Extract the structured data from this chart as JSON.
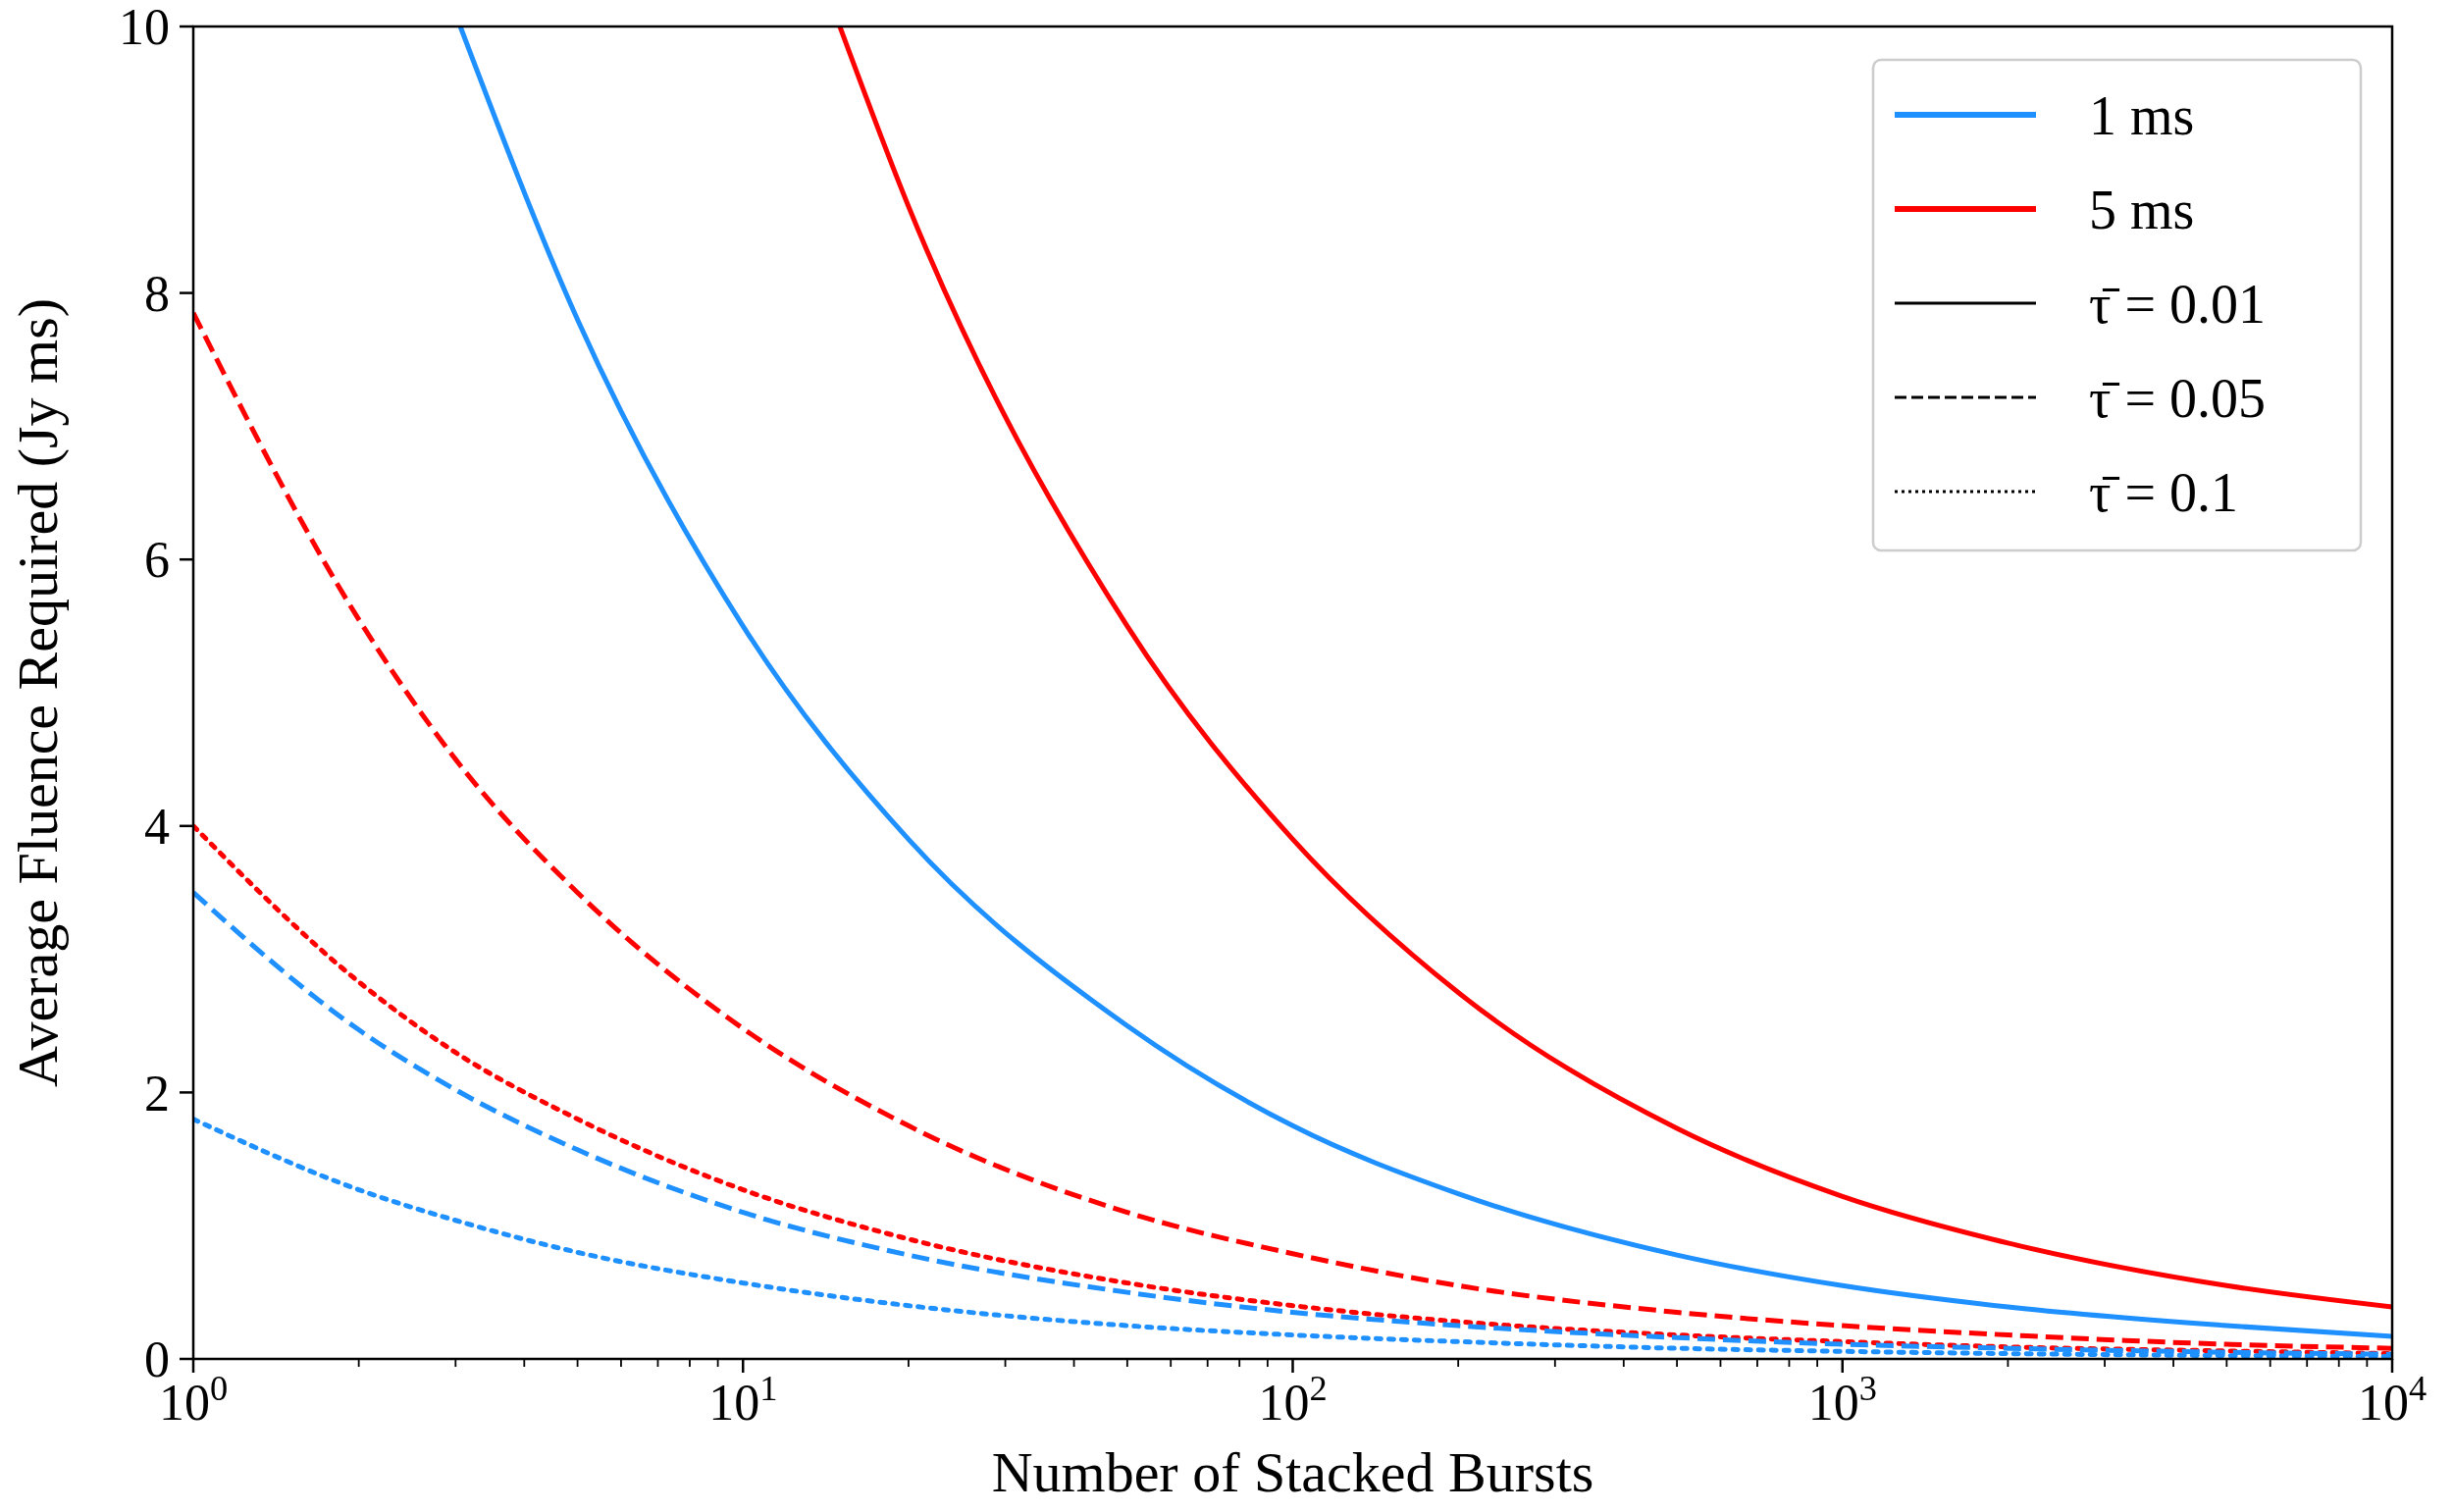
{
  "chart_data": {
    "type": "line",
    "xlabel": "Number of Stacked Bursts",
    "ylabel": "Average Fluence Required (Jy ms)",
    "log": "x",
    "grid": false,
    "legend": "top right",
    "xlim": [
      1,
      10000
    ],
    "ylim": [
      0,
      10
    ],
    "xticks": [
      {
        "value": 1,
        "label": "10$^{0}$"
      },
      {
        "value": 2,
        "label": null
      },
      {
        "value": 3,
        "label": null
      },
      {
        "value": 4,
        "label": null
      },
      {
        "value": 5,
        "label": null
      },
      {
        "value": 6,
        "label": null
      },
      {
        "value": 7,
        "label": null
      },
      {
        "value": 8,
        "label": null
      },
      {
        "value": 9,
        "label": null
      },
      {
        "value": 10,
        "label": "10$^{1}$"
      },
      {
        "value": 20,
        "label": null
      },
      {
        "value": 30,
        "label": null
      },
      {
        "value": 40,
        "label": null
      },
      {
        "value": 50,
        "label": null
      },
      {
        "value": 60,
        "label": null
      },
      {
        "value": 70,
        "label": null
      },
      {
        "value": 80,
        "label": null
      },
      {
        "value": 90,
        "label": null
      },
      {
        "value": 100,
        "label": "10$^{2}$"
      },
      {
        "value": 200,
        "label": null
      },
      {
        "value": 300,
        "label": null
      },
      {
        "value": 400,
        "label": null
      },
      {
        "value": 500,
        "label": null
      },
      {
        "value": 600,
        "label": null
      },
      {
        "value": 700,
        "label": null
      },
      {
        "value": 800,
        "label": null
      },
      {
        "value": 900,
        "label": null
      },
      {
        "value": 1000,
        "label": "10$^{3}$"
      },
      {
        "value": 2000,
        "label": null
      },
      {
        "value": 3000,
        "label": null
      },
      {
        "value": 4000,
        "label": null
      },
      {
        "value": 5000,
        "label": null
      },
      {
        "value": 6000,
        "label": null
      },
      {
        "value": 7000,
        "label": null
      },
      {
        "value": 8000,
        "label": null
      },
      {
        "value": 9000,
        "label": null
      },
      {
        "value": 10000,
        "label": "10$^{4}$"
      }
    ],
    "yticks": [
      0,
      2,
      4,
      6,
      8,
      10
    ],
    "series": [
      {
        "color": "#1e90ff",
        "line_style": "solid",
        "x": [
          3.06,
          5,
          10,
          20,
          50,
          100,
          200,
          500,
          1000,
          2000,
          5000,
          10000
        ],
        "values": [
          10,
          7.8,
          5.5,
          3.9,
          2.5,
          1.75,
          1.24,
          0.78,
          0.55,
          0.39,
          0.25,
          0.17
        ]
      },
      {
        "color": "#ff0000",
        "line_style": "solid",
        "x": [
          15,
          20,
          50,
          100,
          200,
          500,
          1000,
          2000,
          5000,
          10000
        ],
        "values": [
          10,
          8.65,
          5.5,
          3.9,
          2.75,
          1.73,
          1.22,
          0.87,
          0.55,
          0.39
        ]
      },
      {
        "color": "#ff0000",
        "line_style": "dashed",
        "x": [
          1,
          2,
          3,
          5,
          10,
          20,
          50,
          100,
          200,
          500,
          1000,
          2000,
          5000,
          10000
        ],
        "values": [
          7.85,
          5.55,
          4.5,
          3.5,
          2.48,
          1.75,
          1.1,
          0.79,
          0.55,
          0.35,
          0.25,
          0.18,
          0.11,
          0.08
        ]
      },
      {
        "color": "#ff0000",
        "line_style": "dotted",
        "x": [
          1,
          2,
          3,
          5,
          10,
          20,
          50,
          100,
          200,
          500,
          1000,
          2000,
          5000,
          10000
        ],
        "values": [
          4.0,
          2.83,
          2.3,
          1.8,
          1.27,
          0.9,
          0.57,
          0.4,
          0.28,
          0.18,
          0.13,
          0.09,
          0.06,
          0.04
        ]
      },
      {
        "color": "#1e90ff",
        "line_style": "dashed",
        "x": [
          1,
          2,
          3,
          5,
          10,
          20,
          50,
          100,
          200,
          500,
          1000,
          2000,
          5000,
          10000
        ],
        "values": [
          3.5,
          2.47,
          2.02,
          1.57,
          1.1,
          0.78,
          0.5,
          0.35,
          0.25,
          0.16,
          0.11,
          0.08,
          0.05,
          0.035
        ]
      },
      {
        "color": "#1e90ff",
        "line_style": "dotted",
        "x": [
          1,
          2,
          3,
          5,
          10,
          20,
          50,
          100,
          200,
          500,
          1000,
          2000,
          5000,
          10000
        ],
        "values": [
          1.8,
          1.27,
          1.04,
          0.8,
          0.57,
          0.4,
          0.25,
          0.18,
          0.13,
          0.08,
          0.057,
          0.04,
          0.025,
          0.018
        ]
      },
      {
        "name": "1 ms",
        "color": "#1e90ff",
        "line_style": "solid"
      },
      {
        "name": "5 ms",
        "color": "#ff0000",
        "line_style": "solid"
      },
      {
        "name": "τ̄ = 0.01",
        "color": "#000000",
        "line_style": "solid"
      },
      {
        "name": "τ̄ = 0.05",
        "color": "#000000",
        "line_style": "dashed"
      },
      {
        "name": "τ̄ = 0.1",
        "color": "#000000",
        "line_style": "dotted"
      }
    ]
  }
}
